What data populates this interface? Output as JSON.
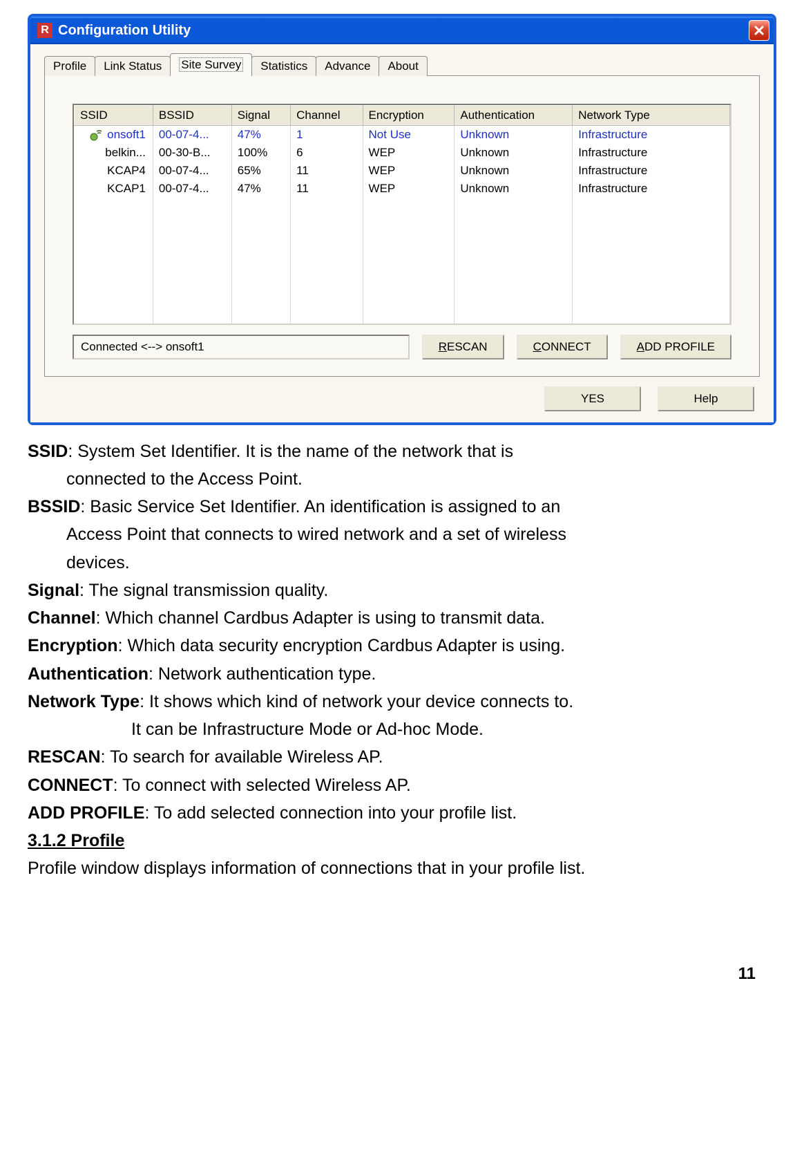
{
  "window": {
    "title": "Configuration Utility",
    "tabs": [
      "Profile",
      "Link Status",
      "Site Survey",
      "Statistics",
      "Advance",
      "About"
    ],
    "active_tab_index": 2,
    "columns": [
      "SSID",
      "BSSID",
      "Signal",
      "Channel",
      "Encryption",
      "Authentication",
      "Network Type"
    ],
    "col_widths": [
      "12%",
      "12%",
      "9%",
      "11%",
      "14%",
      "18%",
      "24%"
    ],
    "rows": [
      {
        "ssid": "onsoft1",
        "bssid": "00-07-4...",
        "signal": "47%",
        "channel": "1",
        "encryption": "Not Use",
        "auth": "Unknown",
        "ntype": "Infrastructure",
        "selected": true,
        "has_icon": true
      },
      {
        "ssid": "belkin...",
        "bssid": "00-30-B...",
        "signal": "100%",
        "channel": "6",
        "encryption": "WEP",
        "auth": "Unknown",
        "ntype": "Infrastructure"
      },
      {
        "ssid": "KCAP4",
        "bssid": "00-07-4...",
        "signal": "65%",
        "channel": "11",
        "encryption": "WEP",
        "auth": "Unknown",
        "ntype": "Infrastructure"
      },
      {
        "ssid": "KCAP1",
        "bssid": "00-07-4...",
        "signal": "47%",
        "channel": "11",
        "encryption": "WEP",
        "auth": "Unknown",
        "ntype": "Infrastructure"
      }
    ],
    "empty_rows": 7,
    "status": "Connected <--> onsoft1",
    "buttons": {
      "rescan": "RESCAN",
      "connect": "CONNECT",
      "addprofile": "ADD PROFILE"
    },
    "dlg_yes": "YES",
    "dlg_help": "Help",
    "titlebar_bg": "#0b58d8",
    "panel_bg": "#faf9f4"
  },
  "doc": {
    "items": [
      {
        "term": "SSID",
        "text1": ": System Set Identifier.    It is the name of the network that is",
        "cont": [
          "connected to the Access Point."
        ]
      },
      {
        "term": "BSSID",
        "text1": ": Basic Service Set Identifier.    An identification is assigned to an",
        "cont": [
          "Access Point that connects to wired network and a set of wireless",
          "devices."
        ]
      },
      {
        "term": "Signal",
        "text1": ": The signal transmission quality."
      },
      {
        "term": "Channel",
        "text1": ": Which channel Cardbus Adapter is using to transmit data."
      },
      {
        "term": "Encryption",
        "text1": ": Which data security encryption Cardbus Adapter is using."
      },
      {
        "term": "Authentication",
        "text1": ": Network authentication type."
      },
      {
        "term": "Network Type",
        "text1": ": It shows which kind of network your device connects to.",
        "cont2": [
          "It can be Infrastructure Mode or Ad-hoc Mode."
        ]
      },
      {
        "term": "RESCAN",
        "text1": ": To search for available Wireless AP."
      },
      {
        "term": "CONNECT",
        "text1": ": To connect with selected Wireless AP."
      },
      {
        "term": "ADD PROFILE",
        "text1": ": To add selected connection into your profile list."
      }
    ],
    "section": "3.1.2    Profile",
    "section_text": "Profile window displays information of connections that in your profile list.",
    "page": "11"
  }
}
